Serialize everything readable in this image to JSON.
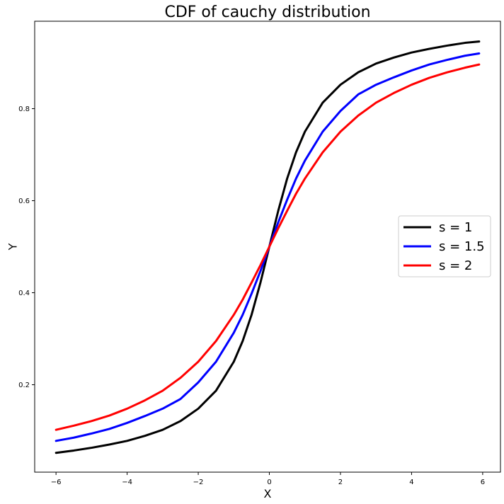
{
  "chart_data": {
    "type": "line",
    "title": "CDF of cauchy distribution",
    "xlabel": "X",
    "ylabel": "Y",
    "xlim": [
      -6.6,
      6.5
    ],
    "ylim": [
      0.01,
      0.99
    ],
    "x_ticks": [
      -6,
      -4,
      -2,
      0,
      2,
      4,
      6
    ],
    "x_tick_labels": [
      "−6",
      "−4",
      "−2",
      "0",
      "2",
      "4",
      "6"
    ],
    "y_ticks": [
      0.2,
      0.4,
      0.6,
      0.8
    ],
    "y_tick_labels": [
      "0.2",
      "0.4",
      "0.6",
      "0.8"
    ],
    "x": [
      -6.0,
      -5.5,
      -5.0,
      -4.5,
      -4.0,
      -3.5,
      -3.0,
      -2.5,
      -2.0,
      -1.5,
      -1.0,
      -0.75,
      -0.5,
      -0.25,
      0.0,
      0.25,
      0.5,
      0.75,
      1.0,
      1.5,
      2.0,
      2.5,
      3.0,
      3.5,
      4.0,
      4.5,
      5.0,
      5.5,
      5.9
    ],
    "series": [
      {
        "name": "s = 1",
        "color": "#000000",
        "values": [
          0.052,
          0.057,
          0.063,
          0.07,
          0.078,
          0.089,
          0.102,
          0.121,
          0.148,
          0.187,
          0.25,
          0.295,
          0.352,
          0.422,
          0.5,
          0.578,
          0.648,
          0.705,
          0.75,
          0.813,
          0.852,
          0.879,
          0.898,
          0.911,
          0.922,
          0.93,
          0.937,
          0.943,
          0.946
        ]
      },
      {
        "name": "s = 1.5",
        "color": "#0000ff",
        "values": [
          0.078,
          0.085,
          0.094,
          0.104,
          0.117,
          0.132,
          0.148,
          0.169,
          0.205,
          0.25,
          0.313,
          0.352,
          0.398,
          0.447,
          0.5,
          0.553,
          0.602,
          0.648,
          0.687,
          0.75,
          0.795,
          0.831,
          0.852,
          0.868,
          0.883,
          0.896,
          0.906,
          0.915,
          0.92
        ]
      },
      {
        "name": "s = 2",
        "color": "#ff0000",
        "values": [
          0.102,
          0.111,
          0.121,
          0.133,
          0.148,
          0.166,
          0.187,
          0.215,
          0.25,
          0.295,
          0.352,
          0.385,
          0.422,
          0.46,
          0.5,
          0.54,
          0.578,
          0.615,
          0.648,
          0.705,
          0.75,
          0.785,
          0.813,
          0.834,
          0.852,
          0.867,
          0.879,
          0.889,
          0.896
        ]
      }
    ],
    "grid": false,
    "legend_position": "center-right"
  }
}
